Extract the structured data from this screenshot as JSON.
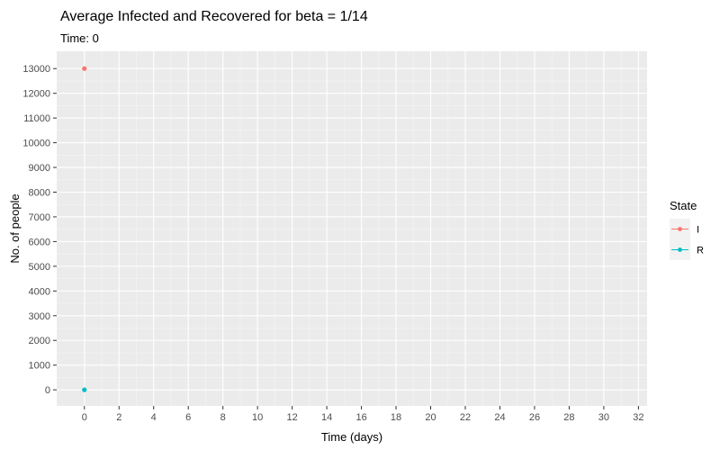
{
  "chart_data": {
    "type": "scatter",
    "title": "Average Infected and Recovered for beta = 1/14",
    "subtitle": "Time: 0",
    "xlabel": "Time (days)",
    "ylabel": "No. of people",
    "xlim": [
      -1.6,
      32.5
    ],
    "ylim": [
      -650,
      13700
    ],
    "xticks": [
      0,
      2,
      4,
      6,
      8,
      10,
      12,
      14,
      16,
      18,
      20,
      22,
      24,
      26,
      28,
      30,
      32
    ],
    "yticks": [
      0,
      1000,
      2000,
      3000,
      4000,
      5000,
      6000,
      7000,
      8000,
      9000,
      10000,
      11000,
      12000,
      13000
    ],
    "grid": true,
    "legend": {
      "title": "State",
      "placement": "right"
    },
    "series": [
      {
        "name": "I",
        "color": "#F8766D",
        "x": [
          0
        ],
        "y": [
          13000
        ]
      },
      {
        "name": "R",
        "color": "#00BFC4",
        "x": [
          0
        ],
        "y": [
          0
        ]
      }
    ]
  }
}
